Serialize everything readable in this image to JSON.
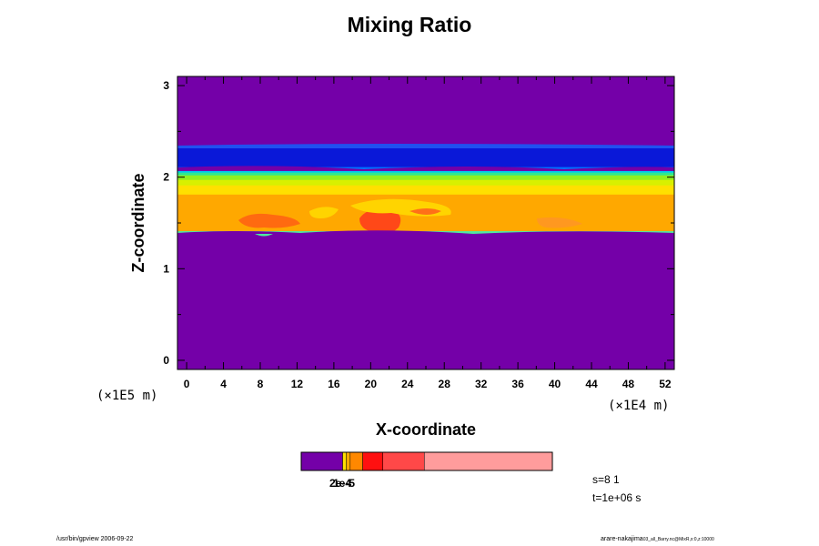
{
  "chart_data": {
    "type": "heatmap",
    "title": "Mixing Ratio",
    "xlabel": "X-coordinate",
    "ylabel": "Z-coordinate",
    "x_unit": "(×1E4 m)",
    "y_unit": "(×1E5 m)",
    "xlim": [
      -1,
      53
    ],
    "ylim": [
      -0.1,
      3.1
    ],
    "x_ticks": [
      0,
      4,
      8,
      12,
      16,
      20,
      24,
      28,
      32,
      36,
      40,
      44,
      48,
      52
    ],
    "y_ticks": [
      0,
      1,
      2,
      3
    ],
    "grid": false,
    "bands": [
      {
        "z0": 2.28,
        "z1": 3.1,
        "color": "#7400a8"
      },
      {
        "z0": 2.1,
        "z1": 2.34,
        "color": "#0a18d8"
      },
      {
        "z0": 2.07,
        "z1": 2.11,
        "color": "#0070ff"
      },
      {
        "z0": 2.04,
        "z1": 2.08,
        "color": "#00c8f0"
      },
      {
        "z0": 2.01,
        "z1": 2.05,
        "color": "#30e890"
      },
      {
        "z0": 1.96,
        "z1": 2.02,
        "color": "#90f020"
      },
      {
        "z0": 1.9,
        "z1": 1.97,
        "color": "#d8f000"
      },
      {
        "z0": 1.8,
        "z1": 1.91,
        "color": "#ffe000"
      },
      {
        "z0": 1.4,
        "z1": 1.81,
        "color": "#ffa800"
      },
      {
        "z0": 1.37,
        "z1": 1.41,
        "color": "#50e8a0"
      },
      {
        "z0": -0.1,
        "z1": 1.37,
        "color": "#7400a8"
      }
    ],
    "colorbar": {
      "segments": [
        {
          "color": "#7400a8",
          "start": 0.0,
          "end": 0.165
        },
        {
          "color": "#ffe000",
          "start": 0.165,
          "end": 0.18
        },
        {
          "color": "#ffa800",
          "start": 0.18,
          "end": 0.195
        },
        {
          "color": "#ff8800",
          "start": 0.195,
          "end": 0.245
        },
        {
          "color": "#ff1010",
          "start": 0.245,
          "end": 0.325
        },
        {
          "color": "#ff4848",
          "start": 0.325,
          "end": 0.49
        },
        {
          "color": "#ff9c9c",
          "start": 0.49,
          "end": 1.0
        }
      ],
      "label": "1e-5",
      "label_overlap": "2e-4"
    },
    "info": {
      "line1": "s=8 1",
      "line2": "t=1e+06 s"
    }
  },
  "footer": {
    "left": "/usr/bin/gpview 2006-09-22",
    "right_main": "arare-nakajima",
    "right_small": "03_all_Barry.nc@MixR,x:0,z:10000"
  }
}
